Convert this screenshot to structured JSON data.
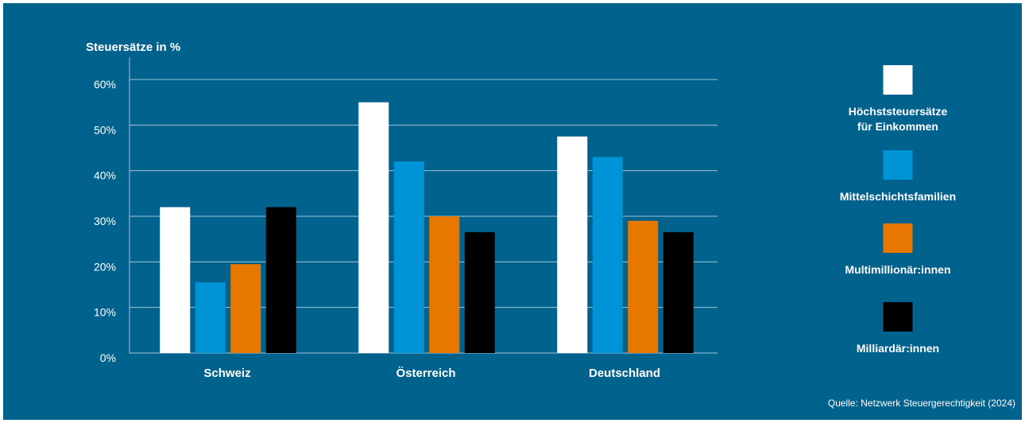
{
  "chart_data": {
    "type": "bar",
    "ylabel": "Steuersätze in %",
    "ylim": [
      0,
      60
    ],
    "yticks": [
      "0%",
      "10%",
      "20%",
      "30%",
      "40%",
      "50%",
      "60%"
    ],
    "categories": [
      "Schweiz",
      "Österreich",
      "Deutschland"
    ],
    "grid": true,
    "legend_position": "right",
    "series": [
      {
        "name": "Höchststeuersätze\nfür Einkommen",
        "color": "#ffffff",
        "values": [
          32,
          55,
          47.5
        ]
      },
      {
        "name": "Mittelschichtsfamilien",
        "color": "#0093d5",
        "values": [
          15.5,
          42,
          43
        ]
      },
      {
        "name": "Multimillionär:innen",
        "color": "#e87700",
        "values": [
          19.5,
          30,
          29
        ]
      },
      {
        "name": "Milliardär:innen",
        "color": "#000000",
        "values": [
          32,
          26.5,
          26.5
        ]
      }
    ],
    "source": "Quelle: Netzwerk Steuergerechtigkeit (2024)"
  },
  "colors": {
    "background": "#02628e",
    "gridline": "#9fc3d8"
  }
}
